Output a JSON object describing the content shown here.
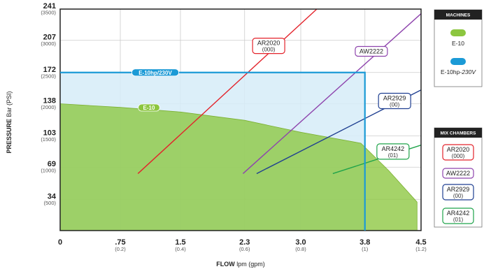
{
  "chart_data": {
    "type": "line",
    "xlabel_bold": "FLOW",
    "xlabel_rest": " lpm (gpm)",
    "ylabel_bold": "PRESSURE",
    "ylabel_rest": " Bar (PSI)",
    "xlim": [
      0,
      4.5
    ],
    "ylim": [
      0,
      241
    ],
    "x_ticks": [
      {
        "value": 0,
        "label": "0",
        "sub": ""
      },
      {
        "value": 0.75,
        "label": ".75",
        "sub": "(0.2)"
      },
      {
        "value": 1.5,
        "label": "1.5",
        "sub": "(0.4)"
      },
      {
        "value": 2.3,
        "label": "2.3",
        "sub": "(0.6)"
      },
      {
        "value": 3.0,
        "label": "3.0",
        "sub": "(0.8)"
      },
      {
        "value": 3.8,
        "label": "3.8",
        "sub": "(1)"
      },
      {
        "value": 4.5,
        "label": "4.5",
        "sub": "(1.2)"
      }
    ],
    "y_ticks": [
      {
        "value": 241,
        "label": "241",
        "sub": "(3500)"
      },
      {
        "value": 207,
        "label": "207",
        "sub": "(3000)"
      },
      {
        "value": 172,
        "label": "172",
        "sub": "(2500)"
      },
      {
        "value": 138,
        "label": "138",
        "sub": "(2000)"
      },
      {
        "value": 103,
        "label": "103",
        "sub": "(1500)"
      },
      {
        "value": 69,
        "label": "69",
        "sub": "(1000)"
      },
      {
        "value": 34,
        "label": "34",
        "sub": "(500)"
      }
    ],
    "grid": true,
    "machines": [
      {
        "name": "E-10",
        "label": "E-10",
        "color": "#8cc63f",
        "curve": [
          [
            0,
            138
          ],
          [
            0.75,
            134
          ],
          [
            1.5,
            129
          ],
          [
            2.3,
            120
          ],
          [
            3.0,
            107
          ],
          [
            3.25,
            103
          ],
          [
            3.75,
            95
          ],
          [
            4.1,
            65
          ],
          [
            4.45,
            31
          ],
          [
            4.45,
            0
          ]
        ]
      },
      {
        "name": "E-10hp-230V",
        "label": "E-10hp/230V",
        "color": "#1b9ad6",
        "box": {
          "max_flow": 3.8,
          "max_pressure": 172
        }
      }
    ],
    "mix_chambers": [
      {
        "name": "AR2020",
        "sub": "(000)",
        "color": "#e3232b",
        "line": [
          [
            0.97,
            62
          ],
          [
            3.2,
            241
          ]
        ],
        "label_at": [
          2.6,
          201
        ]
      },
      {
        "name": "AW2222",
        "sub": "",
        "color": "#8e44ad",
        "line": [
          [
            2.28,
            62
          ],
          [
            4.5,
            236
          ]
        ],
        "label_at": [
          3.88,
          195
        ]
      },
      {
        "name": "AR2929",
        "sub": "(00)",
        "color": "#1f3f91",
        "line": [
          [
            2.45,
            62
          ],
          [
            4.5,
            153
          ]
        ],
        "label_at": [
          4.17,
          141
        ]
      },
      {
        "name": "AR4242",
        "sub": "(01)",
        "color": "#1fa34a",
        "line": [
          [
            3.4,
            62
          ],
          [
            4.5,
            93
          ]
        ],
        "label_at": [
          4.15,
          86
        ]
      }
    ]
  },
  "legend": {
    "machines_title": "MACHINES",
    "machines": [
      {
        "label": "E-10",
        "label_suffix": "",
        "color": "#8cc63f"
      },
      {
        "label": "E-10hp-",
        "label_suffix": "230V",
        "color": "#1b9ad6"
      }
    ],
    "mix_title": "MIX CHAMBERS",
    "mix": [
      {
        "name": "AR2020",
        "sub": "(000)",
        "color": "#e3232b"
      },
      {
        "name": "AW2222",
        "sub": "",
        "color": "#8e44ad"
      },
      {
        "name": "AR2929",
        "sub": "(00)",
        "color": "#1f3f91"
      },
      {
        "name": "AR4242",
        "sub": "(01)",
        "color": "#1fa34a"
      }
    ]
  }
}
